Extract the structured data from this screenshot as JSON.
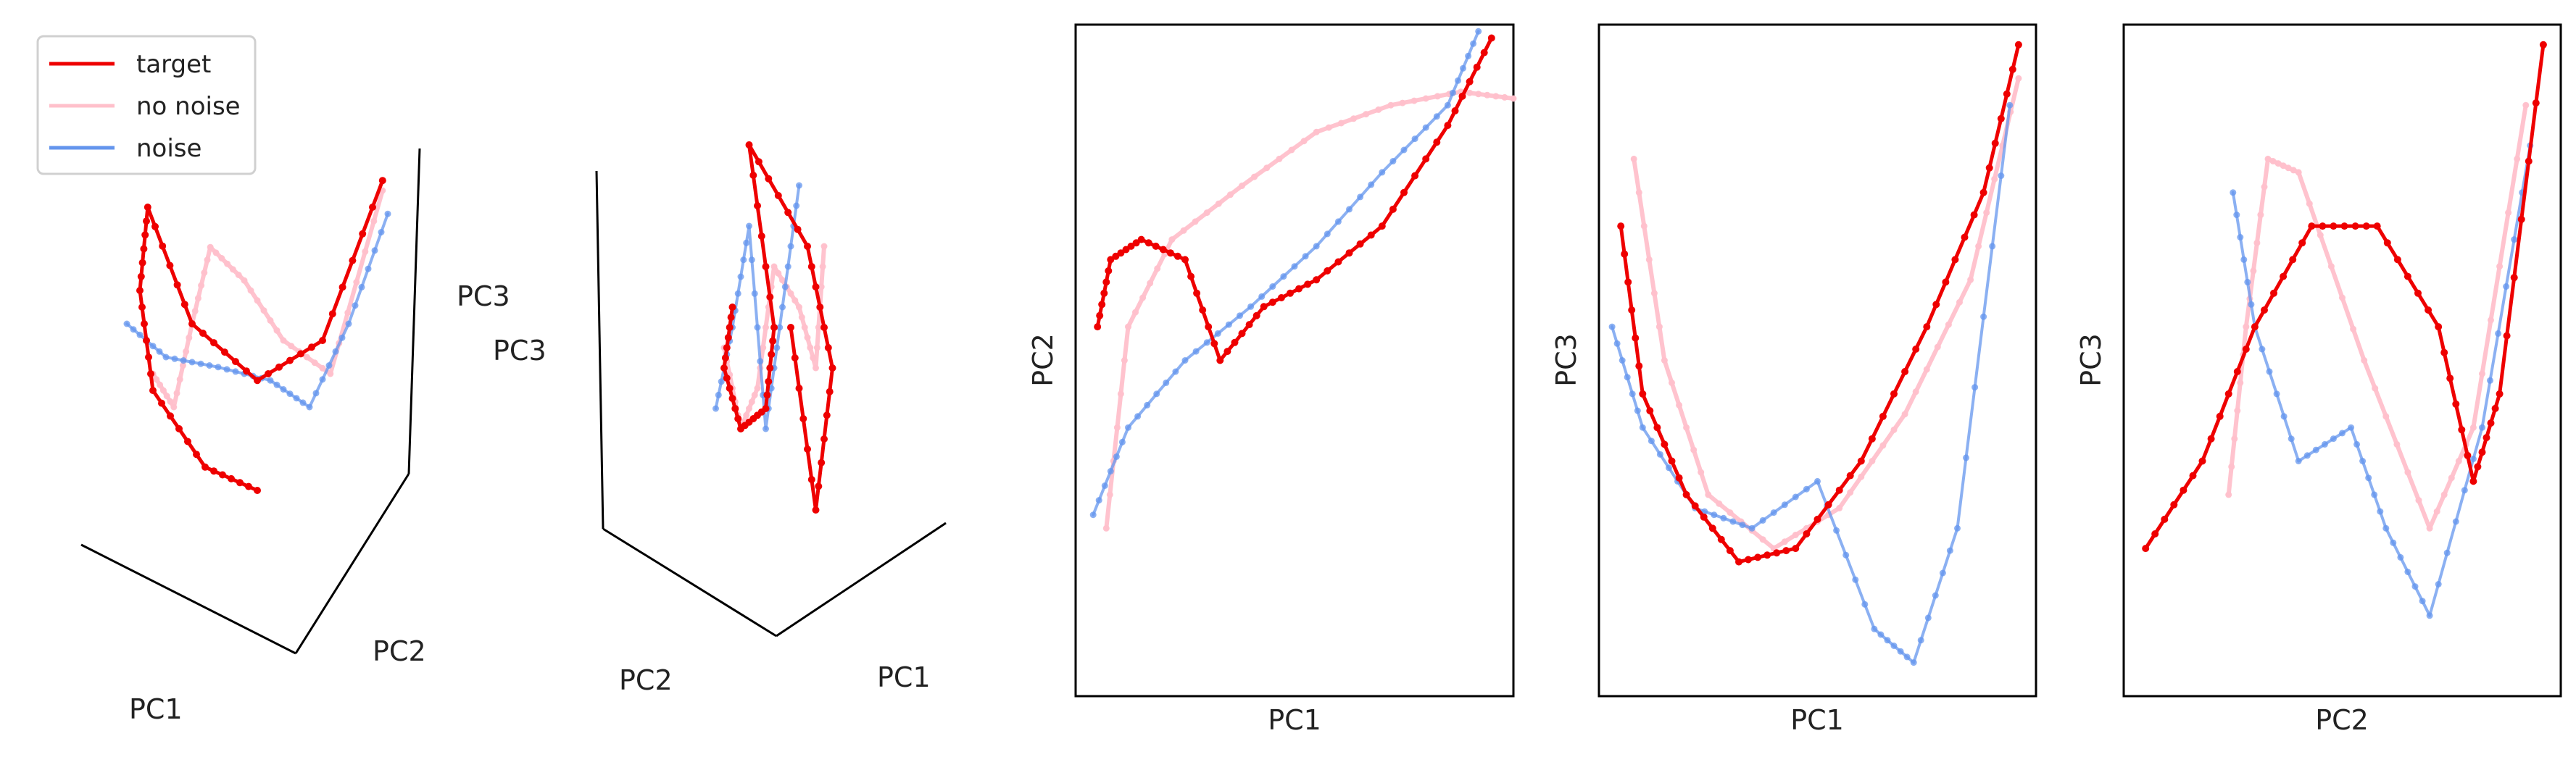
{
  "legend": {
    "items": [
      {
        "label": "target",
        "color": "#ee0000"
      },
      {
        "label": "no noise",
        "color": "#ffc0cb"
      },
      {
        "label": "noise",
        "color": "#6495ed"
      }
    ]
  },
  "colors": {
    "target": "#ee0000",
    "no_noise": "#ffc0cb",
    "noise": "#6495ed"
  },
  "panels": {
    "p3d_left": {
      "labels": [
        "PC1",
        "PC2",
        "PC3"
      ]
    },
    "p3d_mid": {
      "labels": [
        "PC2",
        "PC1",
        "PC3"
      ]
    },
    "p2d_pc1_pc2": {
      "xlabel": "PC1",
      "ylabel": "PC2"
    },
    "p2d_pc1_pc3": {
      "xlabel": "PC1",
      "ylabel": "PC3"
    },
    "p2d_pc2_pc3": {
      "xlabel": "PC2",
      "ylabel": "PC3"
    }
  },
  "chart_data": [
    {
      "type": "line",
      "view": "3d",
      "axes": [
        "PC1",
        "PC2",
        "PC3"
      ],
      "ticks": false,
      "series": [
        {
          "name": "target",
          "x": [
            0.5,
            0.3,
            0.1,
            0.05,
            0.08,
            0.25,
            0.5,
            0.75,
            0.98
          ],
          "y": [
            0.05,
            0.12,
            0.35,
            0.65,
            0.9,
            0.55,
            0.38,
            0.5,
            0.98
          ]
        },
        {
          "name": "no noise",
          "x": [
            0.1,
            0.18,
            0.25,
            0.32,
            0.45,
            0.6,
            0.78,
            0.98
          ],
          "y": [
            0.4,
            0.3,
            0.55,
            0.78,
            0.68,
            0.5,
            0.4,
            0.95
          ]
        },
        {
          "name": "noise",
          "x": [
            0.0,
            0.15,
            0.35,
            0.55,
            0.7,
            0.85,
            1.0
          ],
          "y": [
            0.55,
            0.45,
            0.42,
            0.38,
            0.3,
            0.55,
            0.88
          ]
        }
      ]
    },
    {
      "type": "line",
      "view": "3d",
      "axes": [
        "PC2",
        "PC1",
        "PC3"
      ],
      "ticks": false,
      "series": [
        {
          "name": "target",
          "x": [
            0.35,
            0.3,
            0.4,
            0.55,
            0.6,
            0.45,
            0.8,
            0.95,
            0.85,
            0.7
          ],
          "y": [
            0.6,
            0.45,
            0.3,
            0.35,
            0.55,
            1.0,
            0.75,
            0.45,
            0.1,
            0.55
          ]
        },
        {
          "name": "no noise",
          "x": [
            0.3,
            0.4,
            0.5,
            0.6,
            0.75,
            0.85,
            0.9
          ],
          "y": [
            0.5,
            0.3,
            0.4,
            0.7,
            0.6,
            0.45,
            0.75
          ]
        },
        {
          "name": "noise",
          "x": [
            0.25,
            0.35,
            0.45,
            0.55,
            0.65,
            0.75
          ],
          "y": [
            0.35,
            0.55,
            0.8,
            0.3,
            0.6,
            0.9
          ]
        }
      ]
    },
    {
      "type": "line",
      "xlabel": "PC1",
      "ylabel": "PC2",
      "ticks": false,
      "series": [
        {
          "name": "target",
          "x": [
            0.05,
            0.08,
            0.15,
            0.25,
            0.33,
            0.43,
            0.55,
            0.7,
            0.85,
            0.95
          ],
          "y": [
            0.55,
            0.65,
            0.68,
            0.65,
            0.5,
            0.58,
            0.62,
            0.7,
            0.85,
            0.98
          ]
        },
        {
          "name": "no noise",
          "x": [
            0.07,
            0.12,
            0.22,
            0.38,
            0.55,
            0.72,
            0.88,
            1.0
          ],
          "y": [
            0.25,
            0.55,
            0.68,
            0.76,
            0.84,
            0.88,
            0.9,
            0.89
          ]
        },
        {
          "name": "noise",
          "x": [
            0.04,
            0.12,
            0.25,
            0.4,
            0.55,
            0.7,
            0.85,
            0.92
          ],
          "y": [
            0.27,
            0.4,
            0.5,
            0.58,
            0.67,
            0.78,
            0.88,
            0.99
          ]
        }
      ]
    },
    {
      "type": "line",
      "xlabel": "PC1",
      "ylabel": "PC3",
      "ticks": false,
      "series": [
        {
          "name": "target",
          "x": [
            0.05,
            0.1,
            0.2,
            0.32,
            0.45,
            0.6,
            0.75,
            0.88,
            0.96
          ],
          "y": [
            0.7,
            0.45,
            0.3,
            0.2,
            0.22,
            0.35,
            0.55,
            0.75,
            0.97
          ]
        },
        {
          "name": "no noise",
          "x": [
            0.08,
            0.15,
            0.25,
            0.4,
            0.55,
            0.7,
            0.85,
            0.96
          ],
          "y": [
            0.8,
            0.5,
            0.3,
            0.22,
            0.28,
            0.42,
            0.62,
            0.92
          ]
        },
        {
          "name": "noise",
          "x": [
            0.03,
            0.1,
            0.22,
            0.35,
            0.5,
            0.63,
            0.72,
            0.82,
            0.94
          ],
          "y": [
            0.55,
            0.4,
            0.28,
            0.25,
            0.32,
            0.1,
            0.05,
            0.25,
            0.88
          ]
        }
      ]
    },
    {
      "type": "line",
      "xlabel": "PC2",
      "ylabel": "PC3",
      "ticks": false,
      "series": [
        {
          "name": "target",
          "x": [
            0.05,
            0.18,
            0.3,
            0.43,
            0.58,
            0.72,
            0.8,
            0.86,
            0.96
          ],
          "y": [
            0.22,
            0.35,
            0.55,
            0.7,
            0.7,
            0.55,
            0.32,
            0.45,
            0.97
          ]
        },
        {
          "name": "no noise",
          "x": [
            0.24,
            0.28,
            0.33,
            0.4,
            0.55,
            0.7,
            0.8,
            0.92
          ],
          "y": [
            0.3,
            0.55,
            0.8,
            0.78,
            0.5,
            0.25,
            0.4,
            0.88
          ]
        },
        {
          "name": "noise",
          "x": [
            0.25,
            0.3,
            0.4,
            0.52,
            0.6,
            0.7,
            0.82,
            0.93
          ],
          "y": [
            0.75,
            0.55,
            0.35,
            0.4,
            0.25,
            0.12,
            0.4,
            0.82
          ]
        }
      ]
    }
  ]
}
